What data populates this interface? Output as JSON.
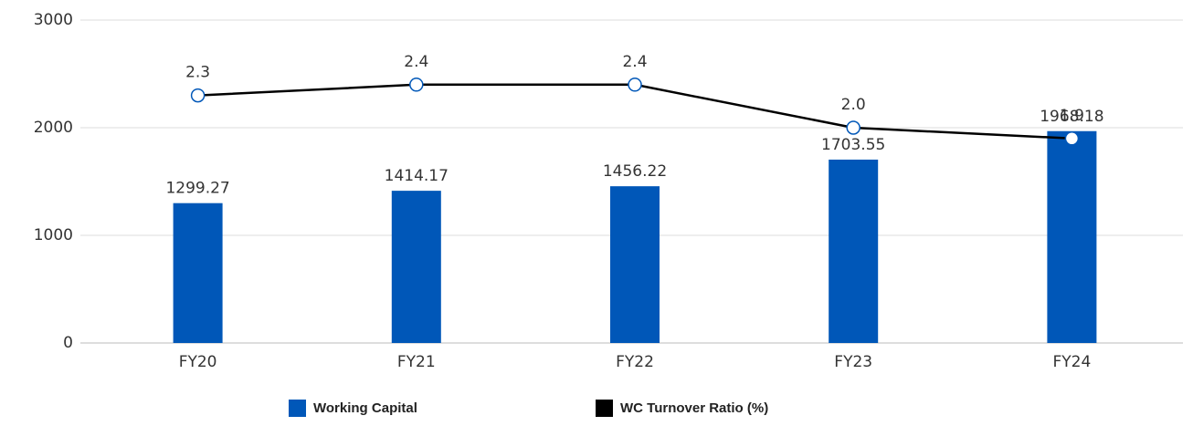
{
  "chart_data": {
    "type": "bar",
    "categories": [
      "FY20",
      "FY21",
      "FY22",
      "FY23",
      "FY24"
    ],
    "series": [
      {
        "name": "Working Capital",
        "type": "bar",
        "color": "#0057b8",
        "values": [
          1299.27,
          1414.17,
          1456.22,
          1703.55,
          1968.18
        ]
      },
      {
        "name": "WC Turnover Ratio (%)",
        "type": "line",
        "axis": "y2",
        "color": "#000000",
        "values": [
          2.3,
          2.4,
          2.4,
          2.0,
          1.9
        ],
        "value_labels": [
          "2.3",
          "2.4",
          "2.4",
          "2.0",
          "1.9"
        ]
      }
    ],
    "ylim": [
      0,
      3000
    ],
    "yticks": [
      0,
      1000,
      2000,
      3000
    ],
    "y2lim": [
      0,
      3
    ],
    "grid": true,
    "legend": "bottom"
  }
}
